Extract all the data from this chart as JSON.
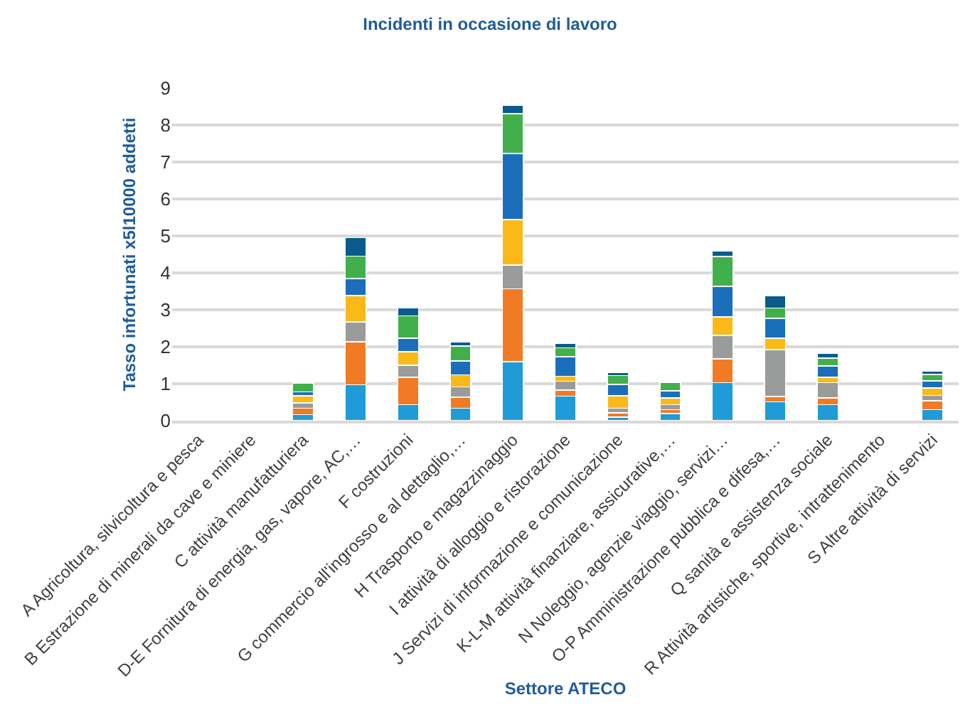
{
  "chart_data": {
    "type": "bar",
    "stacked": true,
    "title": "Incidenti in occasione di lavoro",
    "xlabel": "Settore ATECO",
    "ylabel": "Tasso infortunati x5l10000 addetti",
    "categories": [
      "A Agricoltura, silvicoltura e pesca",
      "B Estrazione di minerali da cave e miniere",
      "C attività manufatturiera",
      "D-E Fornitura di energia, gas, vapore, AC,…",
      "F costruzioni",
      "G commercio all'ingrosso e al dettaglio,…",
      "H Trasporto e magazzinaggio",
      "I attività di alloggio e ristorazione",
      "J Servizi di informazione e comunicazione",
      "K-L-M attività finanziare, assicurative,…",
      "N Noleggio, agenzie viaggio, servizi…",
      "O-P Amministrazione pubblica e difesa,…",
      "Q sanità e assistenza sociale",
      "R Attività artistiche, sportive, intrattenimento",
      "S Altre attività di servizi"
    ],
    "series": [
      {
        "color": "#1f9bd7",
        "values": [
          null,
          null,
          0.16,
          0.97,
          0.43,
          0.34,
          1.6,
          0.66,
          0.1,
          0.19,
          1.03,
          0.51,
          0.43,
          null,
          0.3
        ]
      },
      {
        "color": "#f07b24",
        "values": [
          null,
          null,
          0.18,
          1.17,
          0.74,
          0.3,
          1.97,
          0.17,
          0.11,
          0.11,
          0.64,
          0.14,
          0.19,
          null,
          0.24
        ]
      },
      {
        "color": "#9a9b9b",
        "values": [
          null,
          null,
          0.14,
          0.53,
          0.33,
          0.27,
          0.64,
          0.24,
          0.13,
          0.13,
          0.64,
          1.27,
          0.41,
          null,
          0.14
        ]
      },
      {
        "color": "#fbb918",
        "values": [
          null,
          null,
          0.19,
          0.71,
          0.37,
          0.33,
          1.23,
          0.13,
          0.33,
          0.19,
          0.5,
          0.31,
          0.14,
          null,
          0.2
        ]
      },
      {
        "color": "#1b6fba",
        "values": [
          null,
          null,
          0.11,
          0.47,
          0.36,
          0.38,
          1.79,
          0.53,
          0.31,
          0.19,
          0.83,
          0.54,
          0.31,
          null,
          0.2
        ]
      },
      {
        "color": "#42b04a",
        "values": [
          null,
          null,
          0.24,
          0.6,
          0.61,
          0.4,
          1.08,
          0.24,
          0.24,
          0.23,
          0.8,
          0.28,
          0.21,
          null,
          0.17
        ]
      },
      {
        "color": "#0a5c8c",
        "values": [
          null,
          null,
          0.04,
          0.5,
          0.21,
          0.11,
          0.23,
          0.13,
          0.09,
          0.04,
          0.16,
          0.33,
          0.13,
          null,
          0.1
        ]
      }
    ],
    "ylim": [
      0,
      9
    ],
    "yticks": [
      0,
      1,
      2,
      3,
      4,
      5,
      6,
      7,
      8,
      9
    ],
    "grid": "y"
  }
}
